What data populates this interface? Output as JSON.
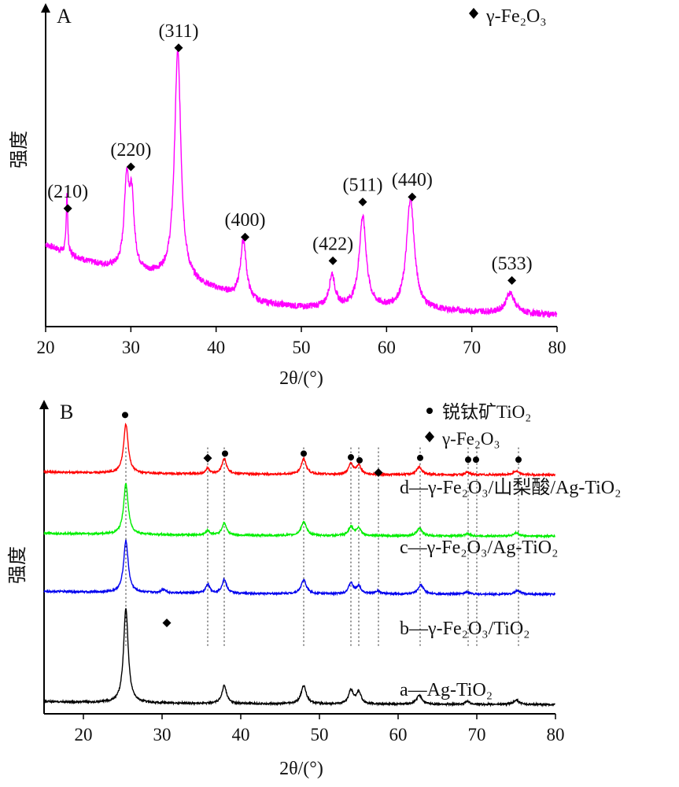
{
  "chart_data": [
    {
      "panel_label": "A",
      "type": "line",
      "xlabel": "2θ/(°)",
      "ylabel": "强度",
      "xlim": [
        20,
        80
      ],
      "x_ticks": [
        "20",
        "30",
        "40",
        "50",
        "60",
        "70",
        "80"
      ],
      "legend": {
        "marker": "diamond",
        "text": "γ-Fe₂O₃",
        "position": "top-right"
      },
      "series": [
        {
          "color": "#ff00ff",
          "baseline": [
            [
              20,
              0.28
            ],
            [
              25,
              0.22
            ],
            [
              30,
              0.185
            ],
            [
              35,
              0.165
            ],
            [
              40,
              0.125
            ],
            [
              45,
              0.08
            ],
            [
              50,
              0.065
            ],
            [
              55,
              0.065
            ],
            [
              60,
              0.06
            ],
            [
              65,
              0.055
            ],
            [
              70,
              0.05
            ],
            [
              75,
              0.045
            ],
            [
              80,
              0.04
            ]
          ],
          "peaks": [
            {
              "x": 22.5,
              "h": 0.21,
              "w": 0.1
            },
            {
              "x": 29.5,
              "h": 0.29,
              "w": 0.35
            },
            {
              "x": 30.1,
              "h": 0.23,
              "w": 0.35
            },
            {
              "x": 35.5,
              "h": 0.78,
              "w": 0.45
            },
            {
              "x": 43.2,
              "h": 0.2,
              "w": 0.4
            },
            {
              "x": 53.6,
              "h": 0.11,
              "w": 0.4
            },
            {
              "x": 57.2,
              "h": 0.31,
              "w": 0.5
            },
            {
              "x": 62.8,
              "h": 0.38,
              "w": 0.55
            },
            {
              "x": 74.5,
              "h": 0.07,
              "w": 0.6
            }
          ],
          "noise": 0.022
        }
      ],
      "annotations": [
        {
          "x": 22.6,
          "label": "(210)",
          "marker": "diamond"
        },
        {
          "x": 30.0,
          "label": "(220)",
          "marker": "diamond"
        },
        {
          "x": 35.6,
          "label": "(311)",
          "marker": "diamond"
        },
        {
          "x": 43.4,
          "label": "(400)",
          "marker": "diamond"
        },
        {
          "x": 53.7,
          "label": "(422)",
          "marker": "diamond"
        },
        {
          "x": 57.2,
          "label": "(511)",
          "marker": "diamond"
        },
        {
          "x": 63.0,
          "label": "(440)",
          "marker": "diamond"
        },
        {
          "x": 74.7,
          "label": "(533)",
          "marker": "diamond"
        }
      ]
    },
    {
      "panel_label": "B",
      "type": "line",
      "xlabel": "2θ/(°)",
      "ylabel": "强度",
      "xlim": [
        15,
        80
      ],
      "x_ticks": [
        "20",
        "30",
        "40",
        "50",
        "60",
        "70",
        "80"
      ],
      "legend": [
        {
          "marker": "circle",
          "text": "锐钛矿TiO₂"
        },
        {
          "marker": "diamond",
          "text": "γ-Fe₂O₃"
        }
      ],
      "series": [
        {
          "name": "d—γ-Fe₂O₃/山梨酸/Ag-TiO₂",
          "color": "#ff0000",
          "offset": 0.78,
          "peaks": [
            {
              "x": 25.4,
              "h": 0.16,
              "w": 0.35
            },
            {
              "x": 35.8,
              "h": 0.018,
              "w": 0.3
            },
            {
              "x": 37.9,
              "h": 0.05,
              "w": 0.35
            },
            {
              "x": 48.0,
              "h": 0.05,
              "w": 0.4
            },
            {
              "x": 54.0,
              "h": 0.035,
              "w": 0.35
            },
            {
              "x": 55.0,
              "h": 0.03,
              "w": 0.35
            },
            {
              "x": 62.7,
              "h": 0.025,
              "w": 0.4
            },
            {
              "x": 68.8,
              "h": 0.008,
              "w": 0.35
            },
            {
              "x": 75.0,
              "h": 0.012,
              "w": 0.4
            }
          ]
        },
        {
          "name": "c—γ-Fe₂O₃/Ag-TiO₂",
          "color": "#00ee00",
          "offset": 0.58,
          "peaks": [
            {
              "x": 25.4,
              "h": 0.165,
              "w": 0.35
            },
            {
              "x": 35.8,
              "h": 0.015,
              "w": 0.3
            },
            {
              "x": 37.9,
              "h": 0.04,
              "w": 0.35
            },
            {
              "x": 48.0,
              "h": 0.045,
              "w": 0.4
            },
            {
              "x": 54.0,
              "h": 0.03,
              "w": 0.35
            },
            {
              "x": 55.0,
              "h": 0.025,
              "w": 0.35
            },
            {
              "x": 62.7,
              "h": 0.025,
              "w": 0.4
            },
            {
              "x": 68.8,
              "h": 0.008,
              "w": 0.35
            },
            {
              "x": 75.0,
              "h": 0.01,
              "w": 0.4
            }
          ]
        },
        {
          "name": "b—γ-Fe₂O₃/TiO₂",
          "color": "#0000ee",
          "offset": 0.39,
          "peaks": [
            {
              "x": 25.4,
              "h": 0.17,
              "w": 0.35
            },
            {
              "x": 30.2,
              "h": 0.012,
              "w": 0.35
            },
            {
              "x": 35.8,
              "h": 0.03,
              "w": 0.3
            },
            {
              "x": 37.9,
              "h": 0.045,
              "w": 0.35
            },
            {
              "x": 48.0,
              "h": 0.045,
              "w": 0.4
            },
            {
              "x": 54.0,
              "h": 0.035,
              "w": 0.35
            },
            {
              "x": 55.0,
              "h": 0.025,
              "w": 0.35
            },
            {
              "x": 57.4,
              "h": 0.01,
              "w": 0.35
            },
            {
              "x": 62.9,
              "h": 0.03,
              "w": 0.4
            },
            {
              "x": 68.8,
              "h": 0.008,
              "w": 0.35
            },
            {
              "x": 75.2,
              "h": 0.012,
              "w": 0.4
            }
          ]
        },
        {
          "name": "a—Ag-TiO₂",
          "color": "#000000",
          "offset": 0.03,
          "peaks": [
            {
              "x": 25.4,
              "h": 0.31,
              "w": 0.35
            },
            {
              "x": 37.9,
              "h": 0.06,
              "w": 0.35
            },
            {
              "x": 48.0,
              "h": 0.06,
              "w": 0.4
            },
            {
              "x": 54.0,
              "h": 0.045,
              "w": 0.35
            },
            {
              "x": 55.0,
              "h": 0.04,
              "w": 0.35
            },
            {
              "x": 62.7,
              "h": 0.03,
              "w": 0.4
            },
            {
              "x": 68.8,
              "h": 0.01,
              "w": 0.35
            },
            {
              "x": 75.0,
              "h": 0.015,
              "w": 0.4
            }
          ]
        }
      ],
      "reference_lines": [
        25.4,
        35.8,
        37.9,
        48.0,
        54.0,
        55.0,
        57.5,
        62.8,
        68.9,
        70.0,
        75.3
      ],
      "markers": [
        {
          "x": 25.3,
          "type": "circle"
        },
        {
          "x": 35.8,
          "type": "diamond"
        },
        {
          "x": 38.0,
          "type": "circle"
        },
        {
          "x": 48.0,
          "type": "circle"
        },
        {
          "x": 54.0,
          "type": "circle"
        },
        {
          "x": 55.1,
          "type": "circle"
        },
        {
          "x": 57.5,
          "type": "diamond"
        },
        {
          "x": 62.8,
          "type": "circle"
        },
        {
          "x": 68.9,
          "type": "circle"
        },
        {
          "x": 69.9,
          "type": "circle"
        },
        {
          "x": 75.3,
          "type": "circle"
        },
        {
          "x": 30.6,
          "type": "diamond"
        }
      ]
    }
  ]
}
